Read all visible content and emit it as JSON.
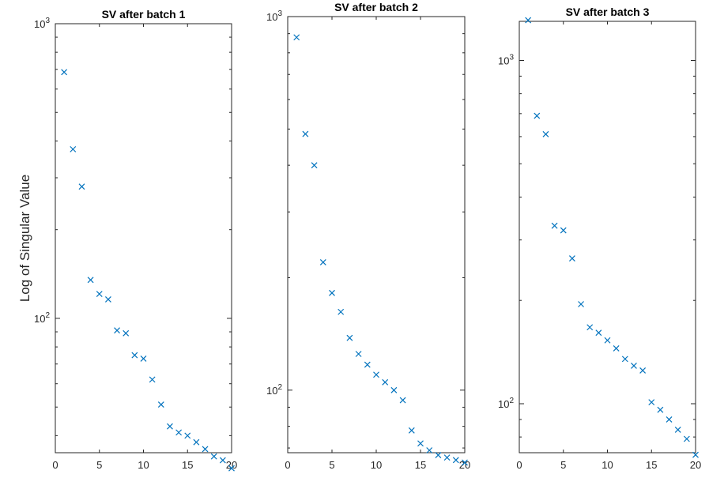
{
  "chart_data": [
    {
      "type": "scatter",
      "title": "SV after batch 1",
      "ylabel": "Log of Singular Value",
      "xlabel": "",
      "yscale": "log",
      "xlim": [
        0,
        20
      ],
      "ylim": [
        35,
        1000
      ],
      "xticks": [
        0,
        5,
        10,
        15,
        20
      ],
      "yticks": [
        {
          "value": 100,
          "label": "10^2"
        },
        {
          "value": 1000,
          "label": "10^3"
        }
      ],
      "marker": "x",
      "color": "#0072bd",
      "x": [
        1,
        2,
        3,
        4,
        5,
        6,
        7,
        8,
        9,
        10,
        11,
        12,
        13,
        14,
        15,
        16,
        17,
        18,
        19,
        20
      ],
      "y": [
        685,
        375,
        280,
        135,
        121,
        116,
        91,
        89,
        75,
        73,
        62,
        51,
        43,
        41,
        40,
        38,
        36,
        34,
        33,
        31
      ]
    },
    {
      "type": "scatter",
      "title": "SV after batch 2",
      "ylabel": "",
      "xlabel": "",
      "yscale": "log",
      "xlim": [
        0,
        20
      ],
      "ylim": [
        68,
        1000
      ],
      "xticks": [
        0,
        5,
        10,
        15,
        20
      ],
      "yticks": [
        {
          "value": 100,
          "label": "10^2"
        },
        {
          "value": 1000,
          "label": "10^3"
        }
      ],
      "marker": "x",
      "color": "#0072bd",
      "x": [
        1,
        2,
        3,
        4,
        5,
        6,
        7,
        8,
        9,
        10,
        11,
        12,
        13,
        14,
        15,
        16,
        17,
        18,
        19,
        20
      ],
      "y": [
        880,
        485,
        400,
        220,
        182,
        162,
        138,
        125,
        117,
        110,
        105,
        100,
        94,
        78,
        72,
        69,
        67,
        66,
        65,
        64
      ]
    },
    {
      "type": "scatter",
      "title": "SV after batch 3",
      "ylabel": "",
      "xlabel": "",
      "yscale": "log",
      "xlim": [
        0,
        20
      ],
      "ylim": [
        72,
        1300
      ],
      "xticks": [
        0,
        5,
        10,
        15,
        20
      ],
      "yticks": [
        {
          "value": 100,
          "label": "10^2"
        },
        {
          "value": 1000,
          "label": "10^3"
        }
      ],
      "marker": "x",
      "color": "#0072bd",
      "x": [
        1,
        2,
        3,
        4,
        5,
        6,
        7,
        8,
        9,
        10,
        11,
        12,
        13,
        14,
        15,
        16,
        17,
        18,
        19,
        20
      ],
      "y": [
        1310,
        690,
        610,
        330,
        320,
        265,
        195,
        167,
        161,
        153,
        145,
        135,
        129,
        125,
        101,
        96,
        90,
        84,
        79,
        71
      ]
    }
  ]
}
